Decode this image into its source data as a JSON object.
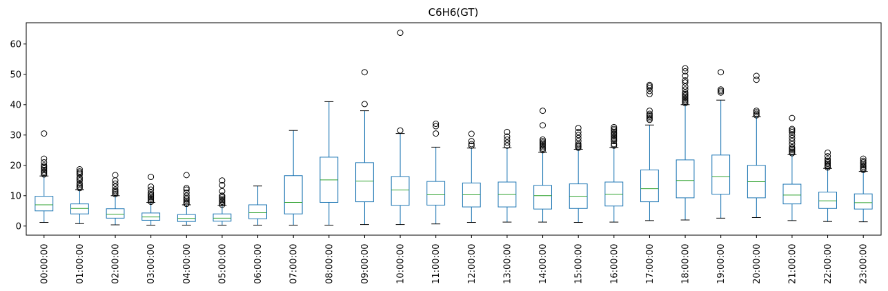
{
  "chart_data": {
    "type": "box",
    "title": "C6H6(GT)",
    "xlabel": "",
    "ylabel": "",
    "ylim": [
      -3,
      67
    ],
    "yticks": [
      0,
      10,
      20,
      30,
      40,
      50,
      60
    ],
    "grid": false,
    "colors": {
      "box": "#1f77b4",
      "median": "#2ca02c",
      "whisker": "#1f77b4",
      "flier": "#000000",
      "axis": "#000000"
    },
    "categories": [
      "00:00:00",
      "01:00:00",
      "02:00:00",
      "03:00:00",
      "04:00:00",
      "05:00:00",
      "06:00:00",
      "07:00:00",
      "08:00:00",
      "09:00:00",
      "10:00:00",
      "11:00:00",
      "12:00:00",
      "13:00:00",
      "14:00:00",
      "15:00:00",
      "16:00:00",
      "17:00:00",
      "18:00:00",
      "19:00:00",
      "20:00:00",
      "21:00:00",
      "22:00:00",
      "23:00:00"
    ],
    "boxes": [
      {
        "whislo": 1.2,
        "q1": 5.0,
        "med": 7.0,
        "q3": 9.8,
        "whishi": 16.5,
        "fliers": [
          17,
          17.5,
          18,
          18.5,
          19,
          19.5,
          20,
          21,
          22.2,
          30.5
        ]
      },
      {
        "whislo": 0.8,
        "q1": 4.0,
        "med": 5.8,
        "q3": 7.3,
        "whishi": 12.0,
        "fliers": [
          12.5,
          13,
          13.5,
          14,
          15,
          15.5,
          16,
          17,
          17.5,
          18,
          18.7
        ]
      },
      {
        "whislo": 0.4,
        "q1": 2.6,
        "med": 3.9,
        "q3": 5.7,
        "whishi": 10.0,
        "fliers": [
          10.5,
          11,
          11.5,
          12,
          13,
          14,
          15,
          16.8
        ]
      },
      {
        "whislo": 0.3,
        "q1": 1.9,
        "med": 3.0,
        "q3": 4.3,
        "whishi": 7.8,
        "fliers": [
          8,
          8.5,
          9,
          9.5,
          10,
          10.5,
          11,
          12,
          13,
          16.2
        ]
      },
      {
        "whislo": 0.3,
        "q1": 1.5,
        "med": 2.5,
        "q3": 3.8,
        "whishi": 7.0,
        "fliers": [
          7.3,
          7.8,
          8.3,
          8.8,
          9.3,
          10,
          11,
          12,
          12.5,
          16.8
        ]
      },
      {
        "whislo": 0.3,
        "q1": 1.6,
        "med": 2.6,
        "q3": 4.0,
        "whishi": 6.8,
        "fliers": [
          7,
          7.5,
          8,
          8.5,
          9,
          9.5,
          10,
          11.5,
          13.5,
          15
        ]
      },
      {
        "whislo": 0.3,
        "q1": 2.4,
        "med": 4.4,
        "q3": 7.0,
        "whishi": 13.2,
        "fliers": []
      },
      {
        "whislo": 0.3,
        "q1": 4.0,
        "med": 7.8,
        "q3": 16.6,
        "whishi": 31.5,
        "fliers": []
      },
      {
        "whislo": 0.3,
        "q1": 7.8,
        "med": 15.2,
        "q3": 22.7,
        "whishi": 41.0,
        "fliers": []
      },
      {
        "whislo": 0.5,
        "q1": 8.0,
        "med": 14.8,
        "q3": 20.9,
        "whishi": 38.0,
        "fliers": [
          40.2,
          50.7
        ]
      },
      {
        "whislo": 0.5,
        "q1": 6.8,
        "med": 11.9,
        "q3": 16.3,
        "whishi": 30.5,
        "fliers": [
          31.5,
          63.7
        ]
      },
      {
        "whislo": 0.7,
        "q1": 6.9,
        "med": 10.3,
        "q3": 14.7,
        "whishi": 26.0,
        "fliers": [
          30.5,
          32.9,
          33.7
        ]
      },
      {
        "whislo": 1.2,
        "q1": 6.3,
        "med": 10.3,
        "q3": 14.2,
        "whishi": 25.7,
        "fliers": [
          26.5,
          27,
          28,
          30.4
        ]
      },
      {
        "whislo": 1.3,
        "q1": 6.3,
        "med": 10.4,
        "q3": 14.5,
        "whishi": 25.8,
        "fliers": [
          26.5,
          27.5,
          28.5,
          29.5,
          31
        ]
      },
      {
        "whislo": 1.3,
        "q1": 5.6,
        "med": 10.0,
        "q3": 13.4,
        "whishi": 24.3,
        "fliers": [
          25,
          25.5,
          26,
          26.5,
          27,
          27.5,
          28,
          28.5,
          33.2,
          38
        ]
      },
      {
        "whislo": 1.2,
        "q1": 5.8,
        "med": 9.8,
        "q3": 13.9,
        "whishi": 25.3,
        "fliers": [
          25.8,
          26.2,
          26.6,
          27,
          28,
          29,
          30,
          31,
          32.3
        ]
      },
      {
        "whislo": 1.3,
        "q1": 6.6,
        "med": 10.5,
        "q3": 14.5,
        "whishi": 25.9,
        "fliers": [
          26.5,
          27,
          28,
          28.5,
          29,
          29.5,
          30,
          30.5,
          31,
          31.5,
          32,
          32.6
        ]
      },
      {
        "whislo": 1.8,
        "q1": 8.0,
        "med": 12.3,
        "q3": 18.5,
        "whishi": 33.3,
        "fliers": [
          35,
          35.5,
          36,
          36.5,
          37,
          38,
          43.5,
          44.5,
          45.5,
          46,
          46.5
        ]
      },
      {
        "whislo": 2.0,
        "q1": 9.3,
        "med": 15.0,
        "q3": 21.8,
        "whishi": 40.0,
        "fliers": [
          40.5,
          41,
          41.5,
          42,
          42.5,
          43,
          43.5,
          44,
          45,
          46,
          47.3,
          48,
          49.5,
          51,
          52
        ]
      },
      {
        "whislo": 2.6,
        "q1": 10.5,
        "med": 16.3,
        "q3": 23.4,
        "whishi": 41.5,
        "fliers": [
          44,
          44.5,
          45,
          50.7
        ]
      },
      {
        "whislo": 2.8,
        "q1": 9.3,
        "med": 14.6,
        "q3": 20.0,
        "whishi": 36.0,
        "fliers": [
          36.5,
          37,
          37.5,
          38,
          48.2,
          49.5
        ]
      },
      {
        "whislo": 1.8,
        "q1": 7.3,
        "med": 10.2,
        "q3": 13.8,
        "whishi": 23.5,
        "fliers": [
          24,
          24.5,
          25,
          25.5,
          26,
          27,
          28,
          29,
          30,
          31,
          31.5,
          32,
          35.6
        ]
      },
      {
        "whislo": 1.5,
        "q1": 5.8,
        "med": 8.3,
        "q3": 11.2,
        "whishi": 19.0,
        "fliers": [
          19.3,
          19.7,
          20,
          20.5,
          21,
          21.5,
          22,
          23,
          24.2
        ]
      },
      {
        "whislo": 1.4,
        "q1": 5.6,
        "med": 7.7,
        "q3": 10.6,
        "whishi": 18.0,
        "fliers": [
          18.5,
          19,
          19.5,
          20,
          20.5,
          21,
          21.5,
          22.2
        ]
      }
    ]
  }
}
